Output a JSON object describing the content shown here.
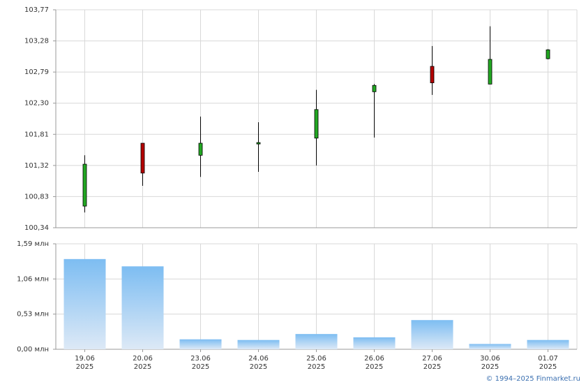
{
  "chart_data": [
    {
      "type": "candlestick",
      "categories": [
        "19.06",
        "20.06",
        "23.06",
        "24.06",
        "25.06",
        "26.06",
        "27.06",
        "30.06",
        "01.07"
      ],
      "open": [
        100.68,
        101.67,
        101.48,
        101.66,
        101.75,
        102.48,
        102.88,
        102.6,
        103.0
      ],
      "high": [
        101.48,
        101.67,
        102.09,
        102.0,
        102.51,
        102.6,
        103.2,
        103.51,
        103.15
      ],
      "low": [
        100.58,
        101.0,
        101.14,
        101.22,
        101.32,
        101.76,
        102.43,
        102.6,
        102.99
      ],
      "close": [
        101.34,
        101.2,
        101.67,
        101.68,
        102.2,
        102.58,
        102.62,
        102.99,
        103.14
      ],
      "up_color": "#22a722",
      "down_color": "#b40000",
      "ylim": [
        100.34,
        103.77
      ],
      "yticks": [
        {
          "value": 100.34,
          "label": "100,34"
        },
        {
          "value": 100.83,
          "label": "100,83"
        },
        {
          "value": 101.32,
          "label": "101,32"
        },
        {
          "value": 101.81,
          "label": "101,81"
        },
        {
          "value": 102.3,
          "label": "102,30"
        },
        {
          "value": 102.79,
          "label": "102,79"
        },
        {
          "value": 103.28,
          "label": "103,28"
        },
        {
          "value": 103.77,
          "label": "103,77"
        }
      ],
      "grid": true
    },
    {
      "type": "bar",
      "categories": [
        "19.06",
        "20.06",
        "23.06",
        "24.06",
        "25.06",
        "26.06",
        "27.06",
        "30.06",
        "01.07"
      ],
      "category_years": [
        "2025",
        "2025",
        "2025",
        "2025",
        "2025",
        "2025",
        "2025",
        "2025",
        "2025"
      ],
      "values": [
        1.36,
        1.25,
        0.15,
        0.14,
        0.23,
        0.18,
        0.44,
        0.08,
        0.14
      ],
      "color": "#7dbdf2",
      "ylim": [
        0,
        1.59
      ],
      "yticks": [
        {
          "value": 0,
          "label": "0,00 млн"
        },
        {
          "value": 0.53,
          "label": "0,53 млн"
        },
        {
          "value": 1.06,
          "label": "1,06 млн"
        },
        {
          "value": 1.59,
          "label": "1,59 млн"
        }
      ],
      "grid": true
    }
  ],
  "footer": {
    "copyright": "© 1994–2025 Finmarket.ru"
  }
}
